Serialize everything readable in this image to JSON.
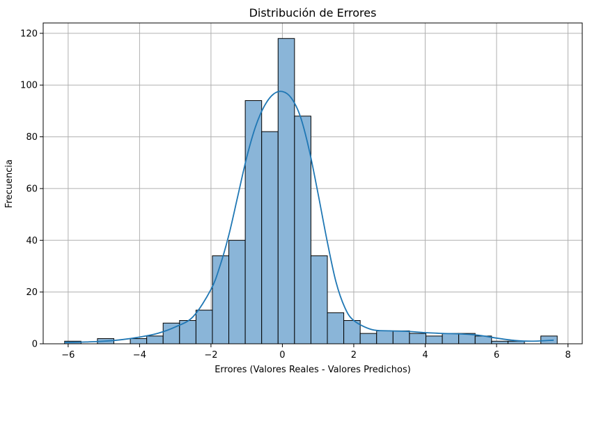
{
  "chart_data": {
    "type": "bar",
    "title": "Distribución de Errores",
    "xlabel": "Errores (Valores Reales - Valores Predichos)",
    "ylabel": "Frecuencia",
    "xlim": [
      -6.7,
      8.4
    ],
    "ylim": [
      0,
      124
    ],
    "xticks": [
      -6,
      -4,
      -2,
      0,
      2,
      4,
      6,
      8
    ],
    "yticks": [
      0,
      20,
      40,
      60,
      80,
      100,
      120
    ],
    "grid": true,
    "bin_start": -6.1,
    "bin_width": 0.46,
    "values": [
      1,
      0,
      2,
      0,
      2,
      3,
      8,
      9,
      13,
      34,
      40,
      94,
      82,
      118,
      88,
      34,
      12,
      9,
      4,
      5,
      5,
      4,
      3,
      4,
      4,
      3,
      1,
      1,
      0,
      3
    ],
    "kde": {
      "x": [
        -6.1,
        -5.5,
        -5.0,
        -4.5,
        -4.0,
        -3.5,
        -3.0,
        -2.5,
        -2.0,
        -1.75,
        -1.5,
        -1.25,
        -1.0,
        -0.75,
        -0.5,
        -0.25,
        0.0,
        0.25,
        0.5,
        0.75,
        1.0,
        1.25,
        1.5,
        1.75,
        2.0,
        2.5,
        3.0,
        3.5,
        4.0,
        4.5,
        5.0,
        5.5,
        6.0,
        6.5,
        7.0,
        7.6
      ],
      "y": [
        0.5,
        0.7,
        1.0,
        1.6,
        2.6,
        4.0,
        6.5,
        10.5,
        21,
        30,
        42,
        57,
        72,
        84,
        92,
        96.5,
        97.5,
        95,
        88,
        75,
        58,
        40,
        24,
        14,
        9,
        5.5,
        5.0,
        4.8,
        4.3,
        4.0,
        3.8,
        3.3,
        2.2,
        1.3,
        1.0,
        1.4
      ]
    },
    "bar_color": "#8ab5d8",
    "bar_edge_color": "#000000",
    "kde_color": "#1f77b4",
    "grid_color": "#b0b0b0"
  }
}
